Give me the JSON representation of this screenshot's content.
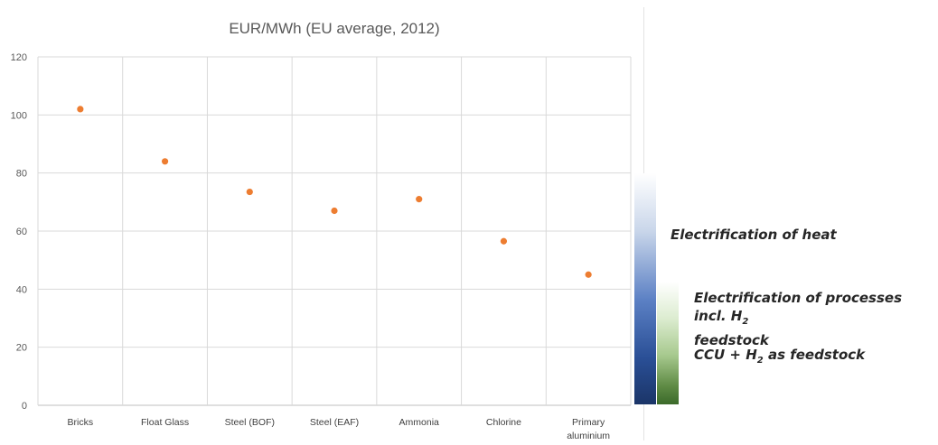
{
  "chart_data": {
    "type": "scatter",
    "title": "EUR/MWh (EU average, 2012)",
    "categories": [
      "Bricks",
      "Float Glass",
      "Steel (BOF)",
      "Steel (EAF)",
      "Ammonia",
      "Chlorine",
      "Primary aluminium"
    ],
    "values": [
      102,
      84,
      73.5,
      67,
      71,
      56.5,
      45
    ],
    "ylim": [
      0,
      120
    ],
    "yticks": [
      0,
      20,
      40,
      60,
      80,
      100,
      120
    ],
    "marker_color": "#ED7D31",
    "grid": true
  },
  "legend": {
    "heat": "Electrification of heat",
    "processes_main": "Electrification of processes incl. H",
    "processes_sub": "2",
    "processes_tail": "feedstock",
    "ccu_head": "CCU + H",
    "ccu_sub": "2",
    "ccu_tail": " as feedstock",
    "colors": {
      "blue": "#1b3568",
      "green": "#3b6a2a"
    }
  }
}
